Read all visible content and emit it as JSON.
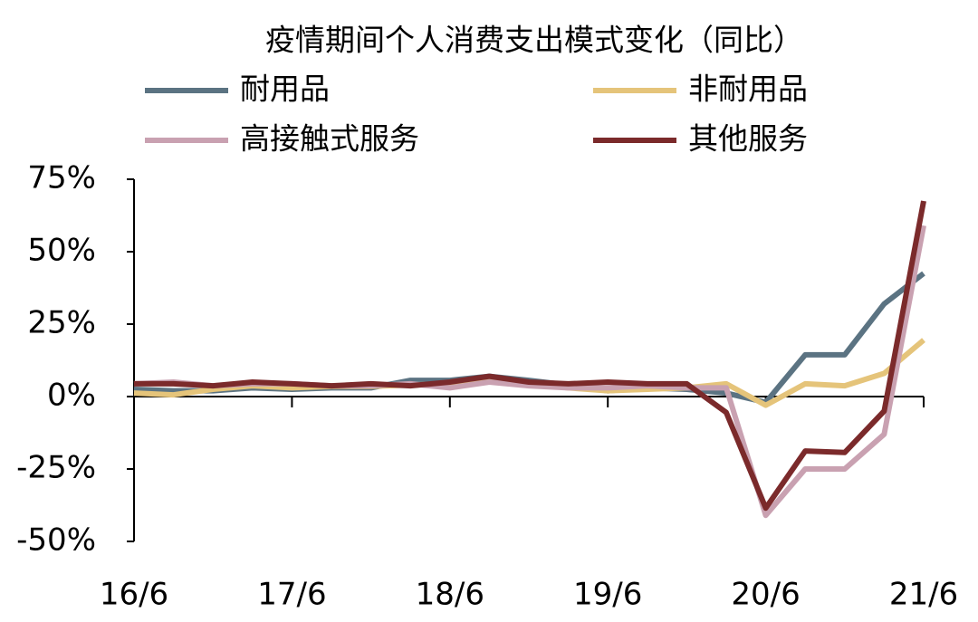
{
  "chart_data": {
    "type": "line",
    "title": "疫情期间个人消费支出模式变化（同比）",
    "categories": [
      "16/6",
      null,
      null,
      null,
      "17/6",
      null,
      null,
      null,
      "18/6",
      null,
      null,
      null,
      "19/6",
      null,
      null,
      null,
      "20/6",
      null,
      null,
      null,
      "21/6"
    ],
    "series": [
      {
        "name": "耐用品",
        "color": "#5b7382",
        "values": [
          2.5,
          2,
          2,
          3,
          2.5,
          3,
          3,
          5.6,
          5.6,
          7,
          5.6,
          4,
          2,
          3,
          2.5,
          1.2,
          -2,
          14.4,
          14.4,
          32,
          42.5
        ]
      },
      {
        "name": "非耐用品",
        "color": "#e5c47a",
        "values": [
          1.2,
          0.6,
          2.5,
          3.7,
          3,
          3.5,
          3.5,
          4,
          4.4,
          5.6,
          4.4,
          3,
          2,
          2.5,
          3,
          4.4,
          -3,
          4.4,
          3.7,
          8,
          19.5
        ]
      },
      {
        "name": "高接触式服务",
        "color": "#c9a1b1",
        "values": [
          4.4,
          5,
          3.7,
          4.4,
          4.4,
          3.7,
          3.7,
          4.4,
          3,
          5,
          3.7,
          3,
          3,
          3.7,
          3,
          3,
          -41,
          -25,
          -25,
          -13,
          59
        ]
      },
      {
        "name": "其他服务",
        "color": "#7b2a2b",
        "values": [
          4.4,
          4.4,
          3.7,
          5,
          4.4,
          3.7,
          4.4,
          3.7,
          5,
          7,
          5,
          4.4,
          5,
          4.4,
          4.4,
          -5.5,
          -38.5,
          -18.8,
          -19.3,
          -5,
          67.5
        ]
      }
    ],
    "ylim": [
      -50,
      75
    ],
    "yticks": [
      {
        "value": -50,
        "label": "-50%"
      },
      {
        "value": -25,
        "label": "-25%"
      },
      {
        "value": 0,
        "label": "0%"
      },
      {
        "value": 25,
        "label": "25%"
      },
      {
        "value": 50,
        "label": "50%"
      },
      {
        "value": 75,
        "label": "75%"
      }
    ]
  }
}
